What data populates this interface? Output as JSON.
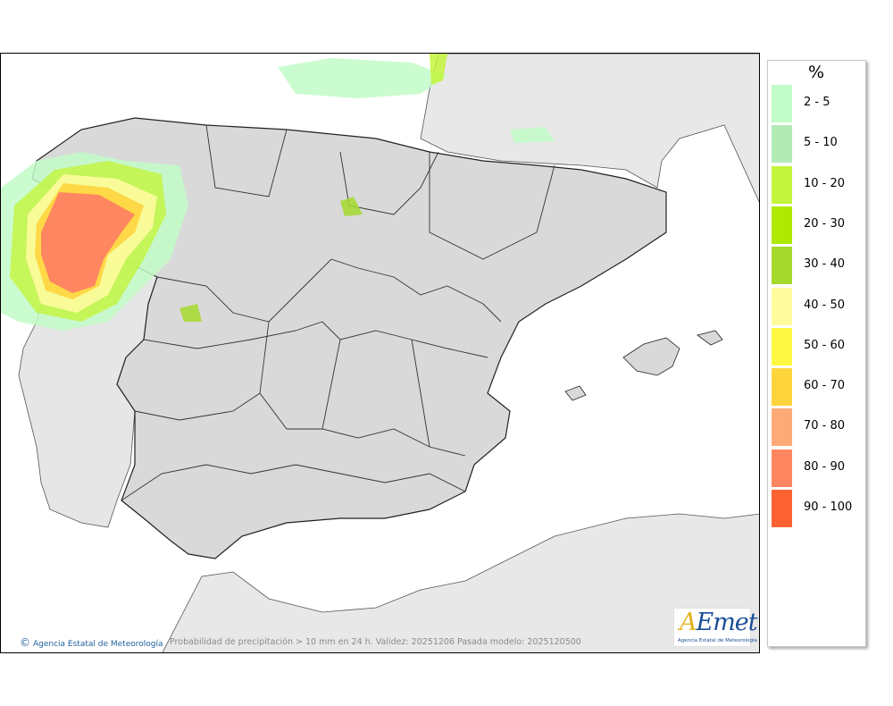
{
  "map": {
    "caption": "Probabilidad de precipitación > 10 mm en 24 h. Validez: 20251206 Pasada modelo: 2025120500",
    "credit": "Agencia Estatal de Meteorología",
    "credit_symbol": "©",
    "sea_color": "#ffffff",
    "land_color": "#d9d9d9",
    "foreign_land_color": "#e8e8e8"
  },
  "legend": {
    "unit": "%",
    "items": [
      {
        "label": "2 - 5",
        "color": "#c2fcc8"
      },
      {
        "label": "5 - 10",
        "color": "#b2eab6"
      },
      {
        "label": "10 - 20",
        "color": "#c3f43c"
      },
      {
        "label": "20 - 30",
        "color": "#aee803"
      },
      {
        "label": "30 - 40",
        "color": "#a5d92d"
      },
      {
        "label": "40 - 50",
        "color": "#fefc9d"
      },
      {
        "label": "50 - 60",
        "color": "#fdf943"
      },
      {
        "label": "60 - 70",
        "color": "#fed43d"
      },
      {
        "label": "70 - 80",
        "color": "#fdaa78"
      },
      {
        "label": "80 - 90",
        "color": "#fe8660"
      },
      {
        "label": "90 - 100",
        "color": "#fe6233"
      }
    ]
  },
  "logo": {
    "text_a": "A",
    "text_rest": "Emet",
    "subtitle": "Agencia Estatal de Meteorología"
  }
}
